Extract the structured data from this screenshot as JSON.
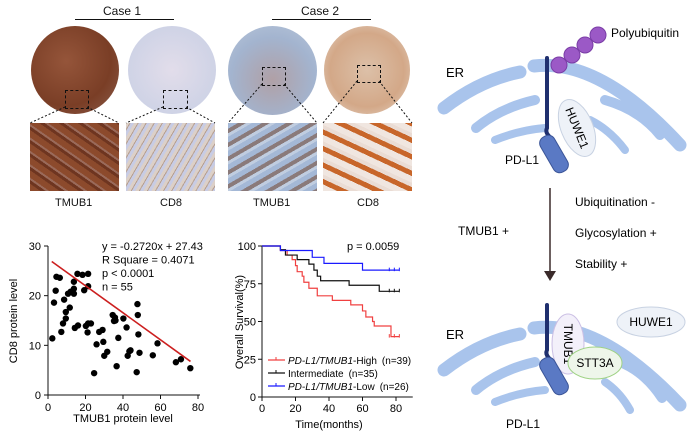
{
  "panel_a": {
    "cases": [
      {
        "label": "Case 1",
        "stains": [
          "TMUB1",
          "CD8"
        ]
      },
      {
        "label": "Case 2",
        "stains": [
          "TMUB1",
          "CD8"
        ]
      }
    ],
    "tissue_colors": [
      "#8a4a30",
      "#d8dae8",
      "#a7b6cc",
      "#d8b79c"
    ]
  },
  "chart_data": [
    {
      "type": "scatter",
      "xlabel": "TMUB1 protein level",
      "ylabel": "CD8 protein level",
      "xlim": [
        0,
        80
      ],
      "ylim": [
        0,
        30
      ],
      "xticks": [
        "0",
        "20",
        "40",
        "60",
        "80"
      ],
      "yticks": [
        "0",
        "10",
        "20",
        "30"
      ],
      "annotations": [
        "y = -0.2720x + 27.43",
        "R Square = 0.4071",
        "p < 0.0001",
        "n = 55"
      ],
      "regression": {
        "slope": -0.272,
        "intercept": 27.43,
        "color": "#cc1f1f"
      },
      "points": [
        [
          2.3,
          11.4
        ],
        [
          3.2,
          18.6
        ],
        [
          4.1,
          21
        ],
        [
          4.5,
          23.8
        ],
        [
          6.3,
          23.6
        ],
        [
          7.1,
          12.7
        ],
        [
          8,
          14.4
        ],
        [
          8.6,
          19.2
        ],
        [
          9.5,
          15.4
        ],
        [
          9.5,
          16.7
        ],
        [
          10.7,
          20.4
        ],
        [
          11.6,
          17.6
        ],
        [
          12.1,
          20.8
        ],
        [
          13.8,
          22.8
        ],
        [
          13.8,
          21.4
        ],
        [
          14.3,
          13.5
        ],
        [
          13.8,
          20.4
        ],
        [
          15.7,
          24.4
        ],
        [
          18.4,
          24.2
        ],
        [
          19.3,
          21.1
        ],
        [
          20.2,
          13.9
        ],
        [
          21.1,
          12.6
        ],
        [
          21.4,
          24.4
        ],
        [
          21.4,
          21.9
        ],
        [
          21.4,
          14.4
        ],
        [
          22.9,
          14.4
        ],
        [
          24.6,
          4.4
        ],
        [
          25.9,
          10.2
        ],
        [
          27.3,
          12.7
        ],
        [
          29.1,
          13.1
        ],
        [
          29.5,
          10.7
        ],
        [
          30,
          7.9
        ],
        [
          31.6,
          8.7
        ],
        [
          34.5,
          16.1
        ],
        [
          35.2,
          14.9
        ],
        [
          35.7,
          15.6
        ],
        [
          36.6,
          5.8
        ],
        [
          37.5,
          11.5
        ],
        [
          40.2,
          15.4
        ],
        [
          41.9,
          13.6
        ],
        [
          42.5,
          7.9
        ],
        [
          43.4,
          8.8
        ],
        [
          47.3,
          4.6
        ],
        [
          47.7,
          18.3
        ],
        [
          47.9,
          16.1
        ],
        [
          48.2,
          12.2
        ],
        [
          48.8,
          8.5
        ],
        [
          55.9,
          8
        ],
        [
          58.4,
          10.4
        ],
        [
          68.2,
          6.6
        ],
        [
          70.9,
          7.2
        ],
        [
          75.9,
          5.4
        ],
        [
          36,
          15
        ],
        [
          44,
          9
        ],
        [
          16,
          14
        ]
      ]
    },
    {
      "type": "line",
      "subtype": "kaplan-meier",
      "xlabel": "Time(months)",
      "ylabel": "Overall Survival(%)",
      "xlim": [
        0,
        90
      ],
      "ylim": [
        0,
        100
      ],
      "xticks": [
        "0",
        "20",
        "40",
        "60",
        "80"
      ],
      "yticks": [
        "0",
        "25",
        "50",
        "75",
        "100"
      ],
      "annotation": "p = 0.0059",
      "legend_placement": "bottom-left",
      "series": [
        {
          "name_italic": "PD-L1/TMUB1",
          "name_rest": "-High",
          "n": "(n=39)",
          "color": "#f04040",
          "steps": [
            [
              0,
              100
            ],
            [
              11,
              97
            ],
            [
              15,
              94
            ],
            [
              18,
              91
            ],
            [
              20,
              87
            ],
            [
              21,
              83
            ],
            [
              24,
              80
            ],
            [
              25,
              76
            ],
            [
              28,
              72
            ],
            [
              33,
              67
            ],
            [
              42,
              64
            ],
            [
              53,
              61
            ],
            [
              60,
              57
            ],
            [
              62,
              53
            ],
            [
              66,
              50
            ],
            [
              67,
              47
            ],
            [
              77,
              40
            ],
            [
              82,
              40
            ]
          ]
        },
        {
          "name_italic": "",
          "name_rest": "Intermediate",
          "n": "(n=35)",
          "color": "#111111",
          "steps": [
            [
              0,
              100
            ],
            [
              11,
              97.5
            ],
            [
              14,
              94
            ],
            [
              21,
              91
            ],
            [
              28,
              88
            ],
            [
              31,
              84
            ],
            [
              33,
              80
            ],
            [
              35,
              77
            ],
            [
              52,
              74
            ],
            [
              70,
              70
            ],
            [
              82,
              70
            ]
          ]
        },
        {
          "name_italic": "PD-L1/TMUB1",
          "name_rest": "-Low",
          "n": "(n=26)",
          "color": "#1a1aff",
          "steps": [
            [
              0,
              100
            ],
            [
              11,
              97
            ],
            [
              30,
              92.5
            ],
            [
              37,
              88.5
            ],
            [
              60,
              84
            ],
            [
              82,
              84
            ]
          ]
        }
      ]
    }
  ],
  "diagram": {
    "top": {
      "er": "ER",
      "polyubiquitin": "Polyubiquitin",
      "huwe1": "HUWE1",
      "pdl1": "PD-L1"
    },
    "arrow": {
      "left": "TMUB1 +",
      "right": [
        "Ubiquitination -",
        "Glycosylation +",
        "Stability +"
      ]
    },
    "bottom": {
      "er": "ER",
      "tmub1": "TMUB1",
      "huwe1": "HUWE1",
      "stt3a": "STT3A",
      "pdl1": "PD-L1"
    },
    "colors": {
      "er": "#a9c4ec",
      "pdl1_line": "#1f2f6e",
      "pdl1_domain": "#5a79c4",
      "ubiquitin": "#9b59c6"
    }
  }
}
